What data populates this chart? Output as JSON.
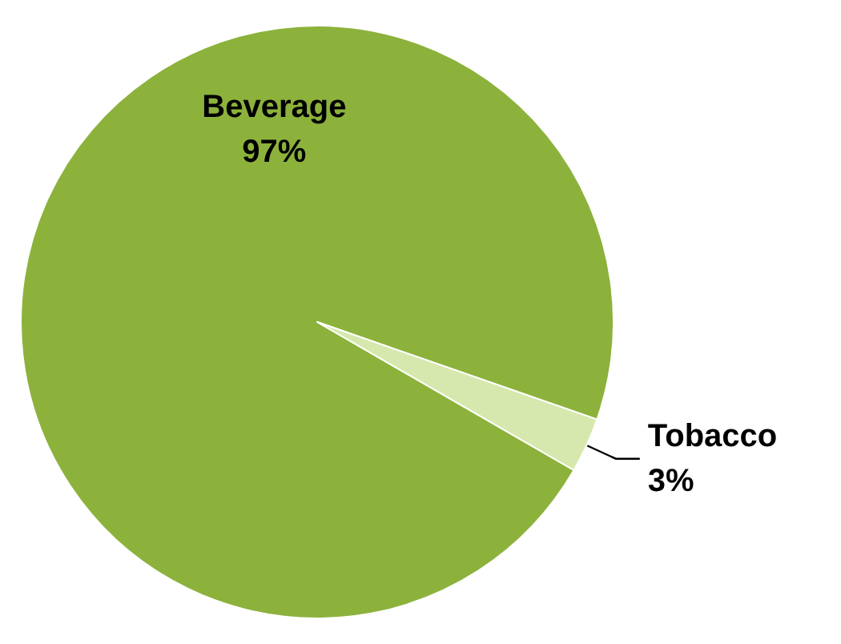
{
  "chart_data": {
    "type": "pie",
    "categories": [
      "Beverage",
      "Tobacco"
    ],
    "values": [
      97,
      3
    ],
    "colors": [
      "#8cb23c",
      "#d6e8ad"
    ],
    "value_labels": [
      "97%",
      "3%"
    ]
  }
}
